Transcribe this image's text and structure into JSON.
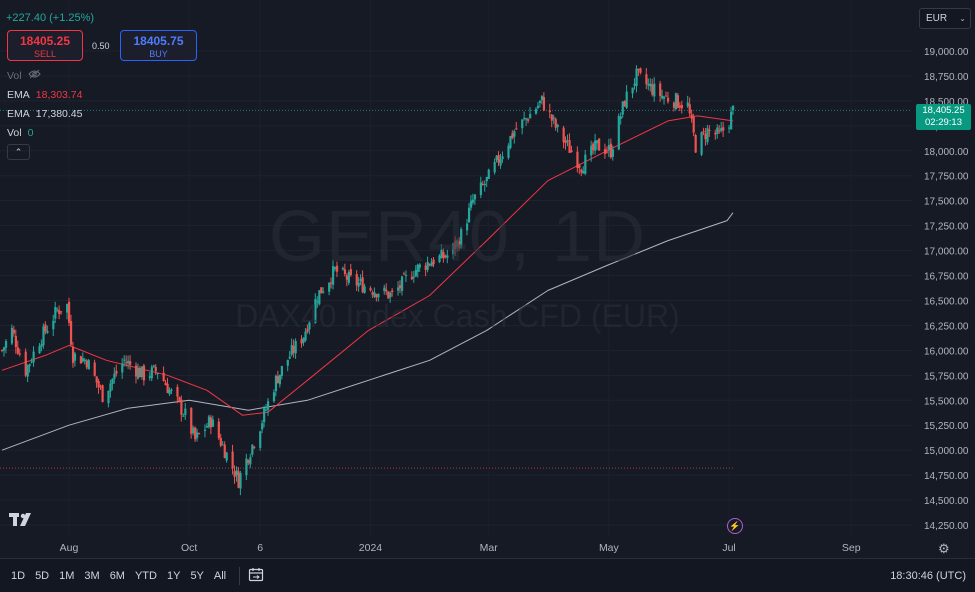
{
  "header": {
    "change": "+227.40 (+1.25%)",
    "sell_price": "18405.25",
    "sell_label": "SELL",
    "spread": "0.50",
    "buy_price": "18405.75",
    "buy_label": "BUY",
    "currency": "EUR"
  },
  "legend": {
    "vol_dim_label": "Vol",
    "ema1_label": "EMA",
    "ema1_value": "18,303.74",
    "ema2_label": "EMA",
    "ema2_value": "17,380.45",
    "vol_label": "Vol",
    "vol_value": "0"
  },
  "watermark": {
    "title": "GER40, 1D",
    "subtitle": "DAX40 Index Cash CFD (EUR)"
  },
  "price_tag": {
    "price": "18,405.25",
    "countdown": "02:29:13"
  },
  "bottom_bar": {
    "ranges": [
      "1D",
      "5D",
      "1M",
      "3M",
      "6M",
      "YTD",
      "1Y",
      "5Y",
      "All"
    ],
    "clock": "18:30:46 (UTC)"
  },
  "colors": {
    "up": "#26a69a",
    "down": "#ef5350",
    "ema_fast": "#f23645",
    "ema_slow": "#b2b5be",
    "background": "#161a25"
  },
  "icons": {
    "collapse": "chevron-up-icon",
    "currency_menu": "chevron-down-icon",
    "calendar": "calendar-range-icon",
    "settings": "gear-icon",
    "event": "lightning-icon",
    "logo": "tradingview-logo"
  },
  "chart_data": {
    "type": "candlestick",
    "y_ticks": [
      14250,
      14500,
      14750,
      15000,
      15250,
      15500,
      15750,
      16000,
      16250,
      16500,
      16750,
      17000,
      17250,
      17500,
      17750,
      18000,
      18250,
      18500,
      18750,
      19000
    ],
    "y_tick_labels": [
      "14,250.00",
      "14,500.00",
      "14,750.00",
      "15,000.00",
      "15,250.00",
      "15,500.00",
      "15,750.00",
      "16,000.00",
      "16,250.00",
      "16,500.00",
      "16,750.00",
      "17,000.00",
      "17,250.00",
      "17,500.00",
      "17,750.00",
      "18,000.00",
      "18,250.00",
      "18,500.00",
      "18,750.00",
      "19,000.00"
    ],
    "ylim": [
      14100,
      19200
    ],
    "x_labels": [
      "Aug",
      "Oct",
      "6",
      "2024",
      "Mar",
      "May",
      "Jul",
      "Sep"
    ],
    "current_price": 18405.25,
    "series": [
      {
        "name": "Price",
        "kind": "close-keypoints",
        "points": [
          [
            "2023-06-28",
            16000
          ],
          [
            "2023-07-03",
            16200
          ],
          [
            "2023-07-10",
            15800
          ],
          [
            "2023-07-17",
            16100
          ],
          [
            "2023-07-26",
            16400
          ],
          [
            "2023-07-31",
            16450
          ],
          [
            "2023-08-03",
            15950
          ],
          [
            "2023-08-10",
            15900
          ],
          [
            "2023-08-18",
            15550
          ],
          [
            "2023-08-29",
            15900
          ],
          [
            "2023-09-08",
            15750
          ],
          [
            "2023-09-15",
            15800
          ],
          [
            "2023-09-21",
            15600
          ],
          [
            "2023-09-29",
            15350
          ],
          [
            "2023-10-04",
            15100
          ],
          [
            "2023-10-12",
            15300
          ],
          [
            "2023-10-19",
            15000
          ],
          [
            "2023-10-26",
            14700
          ],
          [
            "2023-11-02",
            15050
          ],
          [
            "2023-11-07",
            15300
          ],
          [
            "2023-11-14",
            15700
          ],
          [
            "2023-11-21",
            15950
          ],
          [
            "2023-11-28",
            16150
          ],
          [
            "2023-12-05",
            16550
          ],
          [
            "2023-12-14",
            16800
          ],
          [
            "2023-12-22",
            16700
          ],
          [
            "2024-01-04",
            16600
          ],
          [
            "2024-01-12",
            16550
          ],
          [
            "2024-01-23",
            16800
          ],
          [
            "2024-02-01",
            16900
          ],
          [
            "2024-02-09",
            16950
          ],
          [
            "2024-02-15",
            17100
          ],
          [
            "2024-02-22",
            17500
          ],
          [
            "2024-02-29",
            17700
          ],
          [
            "2024-03-07",
            17950
          ],
          [
            "2024-03-14",
            18200
          ],
          [
            "2024-03-19",
            18300
          ],
          [
            "2024-03-28",
            18500
          ],
          [
            "2024-04-05",
            18200
          ],
          [
            "2024-04-10",
            18050
          ],
          [
            "2024-04-17",
            17850
          ],
          [
            "2024-04-25",
            18050
          ],
          [
            "2024-05-02",
            18000
          ],
          [
            "2024-05-09",
            18500
          ],
          [
            "2024-05-15",
            18750
          ],
          [
            "2024-05-21",
            18650
          ],
          [
            "2024-05-28",
            18550
          ],
          [
            "2024-06-04",
            18500
          ],
          [
            "2024-06-10",
            18450
          ],
          [
            "2024-06-14",
            18050
          ],
          [
            "2024-06-20",
            18200
          ],
          [
            "2024-06-26",
            18150
          ],
          [
            "2024-07-01",
            18300
          ],
          [
            "2024-07-03",
            18405
          ]
        ]
      },
      {
        "name": "EMA",
        "points": [
          [
            "2023-06-28",
            15800
          ],
          [
            "2023-07-20",
            15950
          ],
          [
            "2023-08-01",
            16050
          ],
          [
            "2023-08-20",
            15900
          ],
          [
            "2023-09-20",
            15750
          ],
          [
            "2023-10-10",
            15600
          ],
          [
            "2023-10-28",
            15350
          ],
          [
            "2023-11-10",
            15380
          ],
          [
            "2023-11-30",
            15700
          ],
          [
            "2023-12-31",
            16200
          ],
          [
            "2024-01-31",
            16550
          ],
          [
            "2024-02-29",
            17100
          ],
          [
            "2024-03-31",
            17700
          ],
          [
            "2024-04-30",
            18000
          ],
          [
            "2024-05-31",
            18300
          ],
          [
            "2024-06-15",
            18350
          ],
          [
            "2024-07-03",
            18300
          ]
        ]
      },
      {
        "name": "EMA",
        "points": [
          [
            "2023-06-28",
            15000
          ],
          [
            "2023-08-01",
            15250
          ],
          [
            "2023-08-31",
            15420
          ],
          [
            "2023-10-01",
            15500
          ],
          [
            "2023-10-31",
            15400
          ],
          [
            "2023-11-30",
            15500
          ],
          [
            "2023-12-31",
            15700
          ],
          [
            "2024-01-31",
            15900
          ],
          [
            "2024-02-29",
            16200
          ],
          [
            "2024-03-31",
            16600
          ],
          [
            "2024-04-30",
            16850
          ],
          [
            "2024-05-31",
            17100
          ],
          [
            "2024-06-30",
            17300
          ],
          [
            "2024-07-03",
            17380
          ]
        ]
      }
    ]
  }
}
